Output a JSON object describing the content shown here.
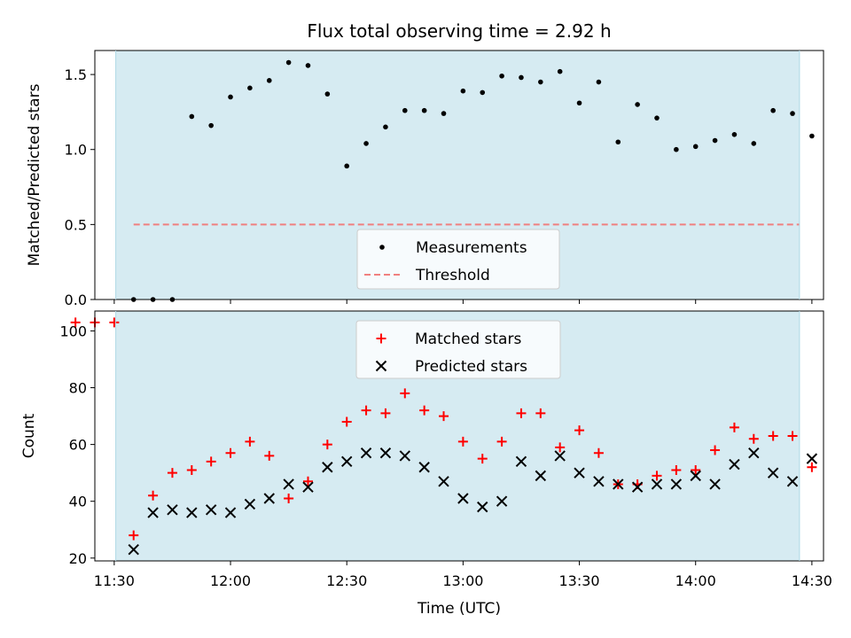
{
  "chart_data": [
    {
      "type": "scatter",
      "title": "Flux total observing time = 2.92 h",
      "xlabel": "",
      "ylabel": "Matched/Predicted stars",
      "xlim_minutes_utc": [
        685,
        873
      ],
      "ylim": [
        0,
        1.66
      ],
      "yticks": [
        0.0,
        0.5,
        1.0,
        1.5
      ],
      "ytick_labels": [
        "0.0",
        "0.5",
        "1.0",
        "1.5"
      ],
      "shaded_interval_minutes_utc": [
        690.4,
        866.8
      ],
      "shaded_color": "#add8e6",
      "legend_location": "lower center",
      "series": [
        {
          "name": "Measurements",
          "marker": "dot",
          "color": "#000000",
          "x": [
            695,
            700,
            705,
            710,
            715,
            720,
            725,
            730,
            735,
            740,
            745,
            750,
            755,
            760,
            765,
            770,
            775,
            780,
            785,
            790,
            795,
            800,
            805,
            810,
            815,
            820,
            825,
            830,
            835,
            840,
            845,
            850,
            855,
            860,
            865,
            870
          ],
          "y": [
            0,
            0,
            0,
            1.22,
            1.16,
            1.35,
            1.41,
            1.46,
            1.58,
            1.56,
            1.37,
            0.89,
            1.04,
            1.15,
            1.26,
            1.26,
            1.24,
            1.39,
            1.38,
            1.49,
            1.48,
            1.45,
            1.52,
            1.31,
            1.45,
            1.05,
            1.3,
            1.21,
            1.0,
            1.02,
            1.06,
            1.1,
            1.04,
            1.26,
            1.24,
            1.09
          ]
        },
        {
          "name": "Threshold",
          "marker": "dashed-line",
          "color": "#f08080",
          "x": [
            695,
            866.8
          ],
          "y": [
            0.5,
            0.5
          ]
        }
      ]
    },
    {
      "type": "scatter",
      "title": "",
      "xlabel": "Time (UTC)",
      "ylabel": "Count",
      "xlim_minutes_utc": [
        685,
        873
      ],
      "ylim": [
        19,
        107
      ],
      "yticks": [
        20,
        40,
        60,
        80,
        100
      ],
      "ytick_labels": [
        "20",
        "40",
        "60",
        "80",
        "100"
      ],
      "xticks_minutes_utc": [
        690,
        720,
        750,
        780,
        810,
        840,
        870
      ],
      "xtick_labels": [
        "11:30",
        "12:00",
        "12:30",
        "13:00",
        "13:30",
        "14:00",
        "14:30"
      ],
      "shaded_interval_minutes_utc": [
        690.4,
        866.8
      ],
      "shaded_color": "#add8e6",
      "legend_location": "upper center",
      "series": [
        {
          "name": "Matched stars",
          "marker": "plus",
          "color": "#ff0000",
          "x": [
            680,
            685,
            690,
            695,
            700,
            705,
            710,
            715,
            720,
            725,
            730,
            735,
            740,
            745,
            750,
            755,
            760,
            765,
            770,
            775,
            780,
            785,
            790,
            795,
            800,
            805,
            810,
            815,
            820,
            825,
            830,
            835,
            840,
            845,
            850,
            855,
            860,
            865,
            870
          ],
          "y": [
            103,
            103,
            103,
            28,
            42,
            50,
            51,
            54,
            57,
            61,
            56,
            41,
            47,
            60,
            68,
            72,
            71,
            78,
            72,
            70,
            61,
            55,
            61,
            71,
            71,
            59,
            65,
            57,
            46,
            46,
            49,
            51,
            51,
            58,
            66,
            62,
            63,
            63,
            52
          ]
        },
        {
          "name": "Predicted stars",
          "marker": "x",
          "color": "#000000",
          "x": [
            695,
            700,
            705,
            710,
            715,
            720,
            725,
            730,
            735,
            740,
            745,
            750,
            755,
            760,
            765,
            770,
            775,
            780,
            785,
            790,
            795,
            800,
            805,
            810,
            815,
            820,
            825,
            830,
            835,
            840,
            845,
            850,
            855,
            860,
            865,
            870
          ],
          "y": [
            23,
            36,
            37,
            36,
            37,
            36,
            39,
            41,
            46,
            45,
            52,
            54,
            57,
            57,
            56,
            52,
            47,
            41,
            38,
            40,
            54,
            49,
            56,
            50,
            47,
            46,
            45,
            46,
            46,
            49,
            46,
            53,
            57,
            50,
            47,
            55
          ]
        }
      ]
    }
  ]
}
